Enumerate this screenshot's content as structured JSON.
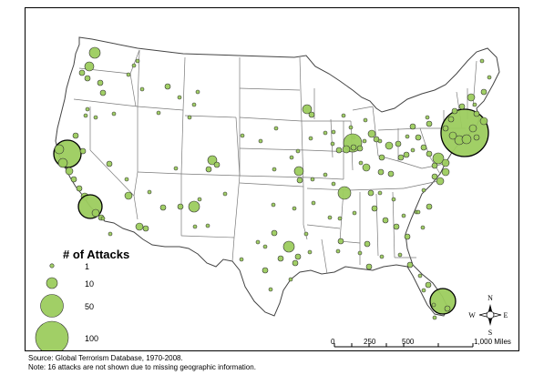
{
  "legend": {
    "title": "# of Attacks",
    "items": [
      {
        "value": 1,
        "label": "1"
      },
      {
        "value": 10,
        "label": "10"
      },
      {
        "value": 50,
        "label": "50"
      },
      {
        "value": 100,
        "label": "100"
      }
    ]
  },
  "scale_bar": {
    "labels": [
      "0",
      "250",
      "500",
      "1,000 Miles"
    ]
  },
  "compass": {
    "n": "N",
    "s": "S",
    "e": "E",
    "w": "W"
  },
  "source": "Source: Global Terrorism Database, 1970-2008.",
  "note": "Note: 16 attacks are not shown due to missing geographic information.",
  "colors": {
    "bubble_fill": "#9ccc5e",
    "outline": "#444444"
  },
  "map_data": {
    "type": "proportional-symbol map",
    "symbol_sizes_by_count": {
      "1": 2.2,
      "10": 6,
      "50": 12.5,
      "100": 18
    }
  }
}
